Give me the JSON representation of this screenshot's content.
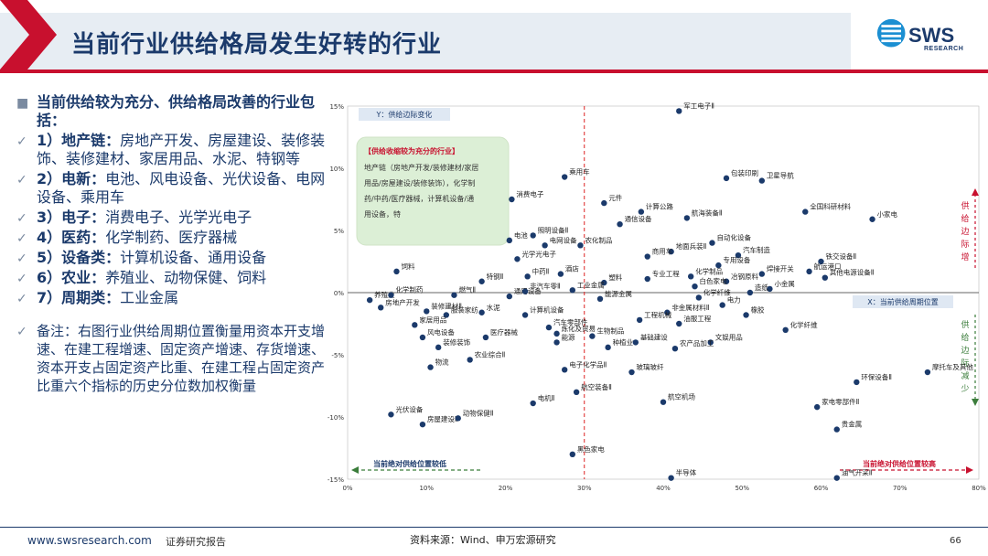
{
  "header": {
    "title": "当前行业供给格局发生好转的行业",
    "logo_text": "SWS",
    "logo_sub": "RESEARCH"
  },
  "left": {
    "heading": "当前供给较为充分、供给格局改善的行业包括：",
    "items": [
      {
        "label": "1）地产链：",
        "text": "房地产开发、房屋建设、装修装饰、装修建材、家居用品、水泥、特钢等"
      },
      {
        "label": "2）电新：",
        "text": "电池、风电设备、光伏设备、电网设备、乘用车"
      },
      {
        "label": "3）电子：",
        "text": "消费电子、光学光电子"
      },
      {
        "label": "4）医药：",
        "text": "化学制药、医疗器械"
      },
      {
        "label": "5）设备类：",
        "text": "计算机设备、通用设备"
      },
      {
        "label": "6）农业：",
        "text": "养殖业、动物保健、饲料"
      },
      {
        "label": "7）周期类：",
        "text": "工业金属"
      }
    ],
    "note": "备注：右图行业供给周期位置衡量用资本开支增速、在建工程增速、固定资产增速、存货增速、资本开支占固定资产比重、在建工程占固定资产比重六个指标的历史分位数加权衡量"
  },
  "chart_data": {
    "type": "scatter",
    "xlabel": "X：当前供给周期位置",
    "ylabel": "Y：供给边际变化",
    "xlim": [
      0,
      80
    ],
    "ylim": [
      -15,
      15
    ],
    "x_ticks": [
      "0%",
      "10%",
      "20%",
      "30%",
      "40%",
      "50%",
      "60%",
      "70%",
      "80%"
    ],
    "y_ticks": [
      "15%",
      "10%",
      "5%",
      "0%",
      "-5%",
      "-10%",
      "-15%"
    ],
    "callout": {
      "title": "【供给收缩较为充分的行业】",
      "text": "地产链（房地产开发/装修建材/家居用品/房屋建设/装修装饰），化学制药/中药/医疗器械，计算机设备/通用设备，特"
    },
    "left_arrow_label": "当前绝对供给位置较低",
    "right_arrow_label": "当前绝对供给位置较高",
    "right_top_label": "供给边际增",
    "right_bottom_label": "供给边际减少",
    "points": [
      {
        "name": "军工电子Ⅱ",
        "x": 42.0,
        "y": 14.6
      },
      {
        "name": "卫星导航",
        "x": 52.5,
        "y": 9.0
      },
      {
        "name": "乘用车",
        "x": 27.5,
        "y": 9.3
      },
      {
        "name": "包装印刷",
        "x": 48.0,
        "y": 9.2
      },
      {
        "name": "消费电子",
        "x": 20.8,
        "y": 7.5
      },
      {
        "name": "元件",
        "x": 32.5,
        "y": 7.2
      },
      {
        "name": "计算公路",
        "x": 37.2,
        "y": 6.5
      },
      {
        "name": "航海装备Ⅱ",
        "x": 43.0,
        "y": 6.0
      },
      {
        "name": "通信设备",
        "x": 34.5,
        "y": 5.5
      },
      {
        "name": "照明设备Ⅱ",
        "x": 23.5,
        "y": 4.6
      },
      {
        "name": "全国科研材料",
        "x": 58.0,
        "y": 6.5
      },
      {
        "name": "小家电",
        "x": 66.5,
        "y": 5.9
      },
      {
        "name": "电池",
        "x": 20.5,
        "y": 4.2
      },
      {
        "name": "电网设备",
        "x": 25.0,
        "y": 3.8
      },
      {
        "name": "农化制品",
        "x": 29.5,
        "y": 3.8
      },
      {
        "name": "地面兵装Ⅱ",
        "x": 41.0,
        "y": 3.3
      },
      {
        "name": "自动化设备",
        "x": 46.2,
        "y": 4.0
      },
      {
        "name": "商用车",
        "x": 38.0,
        "y": 2.9
      },
      {
        "name": "汽车制造",
        "x": 49.5,
        "y": 3.0
      },
      {
        "name": "专用设备",
        "x": 47.0,
        "y": 2.2
      },
      {
        "name": "铁交设备Ⅱ",
        "x": 60.0,
        "y": 2.5
      },
      {
        "name": "航运港口",
        "x": 58.5,
        "y": 1.7
      },
      {
        "name": "光学光电子",
        "x": 21.5,
        "y": 2.7
      },
      {
        "name": "饲料",
        "x": 6.2,
        "y": 1.7
      },
      {
        "name": "酒店",
        "x": 27.0,
        "y": 1.5
      },
      {
        "name": "中药Ⅱ",
        "x": 22.8,
        "y": 1.3
      },
      {
        "name": "化学制品",
        "x": 43.5,
        "y": 1.3
      },
      {
        "name": "焊接开关",
        "x": 52.5,
        "y": 1.5
      },
      {
        "name": "其他电源设备Ⅱ",
        "x": 60.5,
        "y": 1.2
      },
      {
        "name": "特钢Ⅱ",
        "x": 17.0,
        "y": 0.9
      },
      {
        "name": "冶钢原料",
        "x": 48.0,
        "y": 0.9
      },
      {
        "name": "塑料",
        "x": 32.5,
        "y": 0.8
      },
      {
        "name": "专业工程",
        "x": 38.0,
        "y": 1.1
      },
      {
        "name": "白色家电",
        "x": 44.0,
        "y": 0.5
      },
      {
        "name": "小金属",
        "x": 53.5,
        "y": 0.3
      },
      {
        "name": "养殖业",
        "x": 2.8,
        "y": -0.6
      },
      {
        "name": "化学制药",
        "x": 5.5,
        "y": -0.2
      },
      {
        "name": "燃气Ⅱ",
        "x": 13.5,
        "y": -0.2
      },
      {
        "name": "工业金属",
        "x": 28.5,
        "y": 0.2
      },
      {
        "name": "通用设备",
        "x": 20.5,
        "y": -0.3
      },
      {
        "name": "非汽车零Ⅱ",
        "x": 22.5,
        "y": 0.1
      },
      {
        "name": "造纸",
        "x": 51.0,
        "y": 0.0
      },
      {
        "name": "化学纤维",
        "x": 44.5,
        "y": -0.4
      },
      {
        "name": "能源金属",
        "x": 32.0,
        "y": -0.5
      },
      {
        "name": "电力",
        "x": 47.5,
        "y": -1.0
      },
      {
        "name": "装修建材Ⅱ",
        "x": 10.0,
        "y": -1.5
      },
      {
        "name": "房地产开发",
        "x": 4.2,
        "y": -1.2
      },
      {
        "name": "服装家纺",
        "x": 12.5,
        "y": -1.8
      },
      {
        "name": "水泥",
        "x": 17.0,
        "y": -1.6
      },
      {
        "name": "计算机设备",
        "x": 22.5,
        "y": -1.8
      },
      {
        "name": "非金属材料Ⅱ",
        "x": 40.5,
        "y": -1.6
      },
      {
        "name": "橡胶",
        "x": 50.5,
        "y": -1.8
      },
      {
        "name": "工程机械",
        "x": 37.0,
        "y": -2.2
      },
      {
        "name": "家居用品",
        "x": 8.5,
        "y": -2.6
      },
      {
        "name": "汽车零部件",
        "x": 25.5,
        "y": -2.8
      },
      {
        "name": "油服工程",
        "x": 42.0,
        "y": -2.5
      },
      {
        "name": "化学纤维2",
        "x": 55.5,
        "y": -3.0
      },
      {
        "name": "风电设备",
        "x": 9.5,
        "y": -3.6
      },
      {
        "name": "医疗器械",
        "x": 17.5,
        "y": -3.6
      },
      {
        "name": "炼化及贸易",
        "x": 26.5,
        "y": -3.3
      },
      {
        "name": "生物制品",
        "x": 31.0,
        "y": -3.5
      },
      {
        "name": "基础建设",
        "x": 36.5,
        "y": -4.0
      },
      {
        "name": "文娱用品",
        "x": 46.0,
        "y": -4.0
      },
      {
        "name": "装修装饰",
        "x": 11.5,
        "y": -4.4
      },
      {
        "name": "能源",
        "x": 26.5,
        "y": -4.0
      },
      {
        "name": "种植业",
        "x": 33.0,
        "y": -4.4
      },
      {
        "name": "农产品加工",
        "x": 41.5,
        "y": -4.5
      },
      {
        "name": "农业综合Ⅱ",
        "x": 15.5,
        "y": -5.4
      },
      {
        "name": "物流",
        "x": 10.5,
        "y": -6.0
      },
      {
        "name": "电子化学品Ⅱ",
        "x": 27.5,
        "y": -6.2
      },
      {
        "name": "玻璃玻纤",
        "x": 36.0,
        "y": -6.4
      },
      {
        "name": "环保设备Ⅱ",
        "x": 64.5,
        "y": -7.2
      },
      {
        "name": "摩托车及其他",
        "x": 73.5,
        "y": -6.4
      },
      {
        "name": "航空装备Ⅱ",
        "x": 29.0,
        "y": -8.0
      },
      {
        "name": "航空机场",
        "x": 40.0,
        "y": -8.8
      },
      {
        "name": "电机Ⅱ",
        "x": 23.5,
        "y": -8.9
      },
      {
        "name": "光伏设备",
        "x": 5.5,
        "y": -9.8
      },
      {
        "name": "家电零部件Ⅱ",
        "x": 59.5,
        "y": -9.2
      },
      {
        "name": "房屋建设Ⅱ",
        "x": 9.5,
        "y": -10.6
      },
      {
        "name": "动物保健Ⅱ",
        "x": 14.0,
        "y": -10.1
      },
      {
        "name": "贵金属",
        "x": 62.0,
        "y": -11.0
      },
      {
        "name": "黑色家电",
        "x": 28.5,
        "y": -13.0
      },
      {
        "name": "半导体",
        "x": 41.0,
        "y": -14.9
      },
      {
        "name": "油气开采Ⅱ",
        "x": 62.0,
        "y": -14.9
      }
    ]
  },
  "footer": {
    "url": "www.swsresearch.com",
    "label": "证券研究报告",
    "source": "资料来源：Wind、申万宏源研究",
    "page": "66"
  }
}
